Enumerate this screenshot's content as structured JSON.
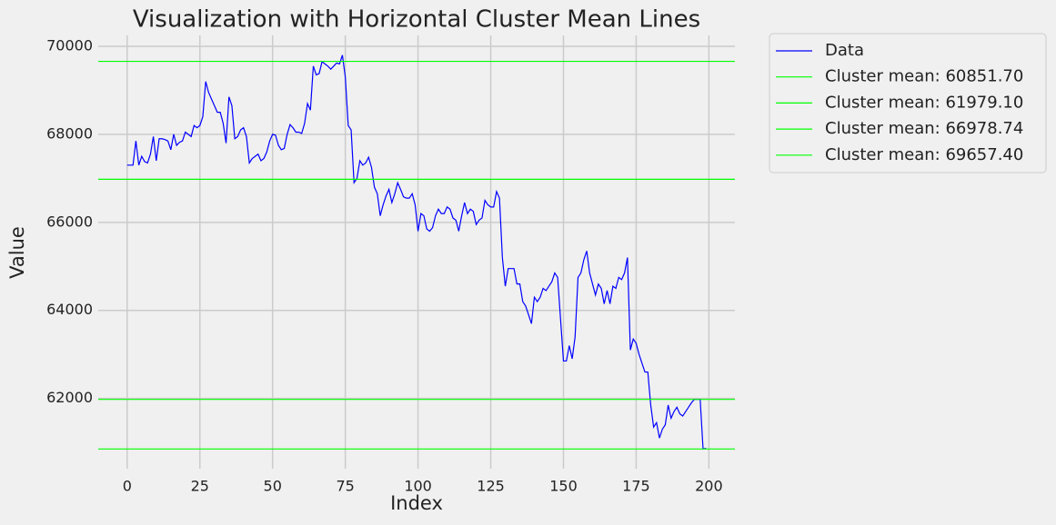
{
  "chart_data": {
    "type": "line",
    "title": "Visualization with Horizontal Cluster Mean Lines",
    "xlabel": "Index",
    "ylabel": "Value",
    "xlim": [
      -9.95,
      208.95
    ],
    "ylim": [
      60404,
      70247
    ],
    "xticks": [
      0,
      25,
      50,
      75,
      100,
      125,
      150,
      175,
      200
    ],
    "yticks": [
      62000,
      64000,
      66000,
      68000,
      70000
    ],
    "grid": true,
    "legend": "outside-upper-right",
    "x": [
      0,
      1,
      2,
      3,
      4,
      5,
      6,
      7,
      8,
      9,
      10,
      11,
      12,
      13,
      14,
      15,
      16,
      17,
      18,
      19,
      20,
      21,
      22,
      23,
      24,
      25,
      26,
      27,
      28,
      29,
      30,
      31,
      32,
      33,
      34,
      35,
      36,
      37,
      38,
      39,
      40,
      41,
      42,
      43,
      44,
      45,
      46,
      47,
      48,
      49,
      50,
      51,
      52,
      53,
      54,
      55,
      56,
      57,
      58,
      59,
      60,
      61,
      62,
      63,
      64,
      65,
      66,
      67,
      68,
      69,
      70,
      71,
      72,
      73,
      74,
      75,
      76,
      77,
      78,
      79,
      80,
      81,
      82,
      83,
      84,
      85,
      86,
      87,
      88,
      89,
      90,
      91,
      92,
      93,
      94,
      95,
      96,
      97,
      98,
      99,
      100,
      101,
      102,
      103,
      104,
      105,
      106,
      107,
      108,
      109,
      110,
      111,
      112,
      113,
      114,
      115,
      116,
      117,
      118,
      119,
      120,
      121,
      122,
      123,
      124,
      125,
      126,
      127,
      128,
      129,
      130,
      131,
      132,
      133,
      134,
      135,
      136,
      137,
      138,
      139,
      140,
      141,
      142,
      143,
      144,
      145,
      146,
      147,
      148,
      149,
      150,
      151,
      152,
      153,
      154,
      155,
      156,
      157,
      158,
      159,
      160,
      161,
      162,
      163,
      164,
      165,
      166,
      167,
      168,
      169,
      170,
      171,
      172,
      173,
      174,
      175,
      176,
      177,
      178,
      179,
      180,
      181,
      182,
      183,
      184,
      185,
      186,
      187,
      188,
      189,
      190,
      191,
      192,
      193,
      194,
      195,
      196,
      197,
      198,
      199
    ],
    "series": [
      {
        "name": "Data",
        "color": "#0000ff",
        "values": [
          67300,
          67300,
          67300,
          67850,
          67300,
          67500,
          67380,
          67350,
          67550,
          67950,
          67400,
          67900,
          67900,
          67880,
          67850,
          67650,
          68000,
          67750,
          67820,
          67850,
          68050,
          68000,
          67950,
          68200,
          68150,
          68200,
          68400,
          69200,
          68950,
          68800,
          68650,
          68500,
          68500,
          68250,
          67800,
          68850,
          68650,
          67900,
          67950,
          68100,
          68150,
          67950,
          67350,
          67450,
          67500,
          67550,
          67400,
          67450,
          67600,
          67850,
          68000,
          67980,
          67750,
          67650,
          67680,
          68000,
          68220,
          68150,
          68050,
          68050,
          68020,
          68250,
          68700,
          68550,
          69550,
          69350,
          69380,
          69650,
          69600,
          69550,
          69480,
          69550,
          69620,
          69600,
          69800,
          69300,
          68200,
          68100,
          66900,
          67000,
          67400,
          67300,
          67350,
          67480,
          67250,
          66800,
          66650,
          66150,
          66400,
          66600,
          66750,
          66450,
          66650,
          66900,
          66750,
          66580,
          66550,
          66550,
          66650,
          66400,
          65800,
          66200,
          66150,
          65850,
          65800,
          65880,
          66150,
          66300,
          66200,
          66200,
          66350,
          66300,
          66100,
          66050,
          65800,
          66150,
          66450,
          66200,
          66300,
          66250,
          65950,
          66050,
          66100,
          66500,
          66400,
          66350,
          66350,
          66700,
          66550,
          65200,
          64550,
          64950,
          64950,
          64950,
          64600,
          64600,
          64200,
          64100,
          63900,
          63700,
          64300,
          64200,
          64300,
          64500,
          64450,
          64550,
          64650,
          64850,
          64750,
          63800,
          62850,
          62850,
          63200,
          62900,
          63400,
          64750,
          64850,
          65150,
          65350,
          64850,
          64600,
          64350,
          64600,
          64500,
          64150,
          64450,
          64150,
          64550,
          64500,
          64750,
          64700,
          64850,
          65200,
          63100,
          63350,
          63250,
          63000,
          62800,
          62600,
          62600,
          61850,
          61350,
          61450,
          61100,
          61300,
          61400,
          61850,
          61550,
          61700,
          61800,
          61650,
          61600,
          61700,
          61800,
          61900,
          61980,
          61980,
          61980,
          60850,
          60870
        ]
      }
    ],
    "hlines": [
      {
        "name": "Cluster mean: 60851.70",
        "value": 60851.7,
        "color": "#00ff00"
      },
      {
        "name": "Cluster mean: 61979.10",
        "value": 61979.1,
        "color": "#00ff00"
      },
      {
        "name": "Cluster mean: 66978.74",
        "value": 66978.74,
        "color": "#00ff00"
      },
      {
        "name": "Cluster mean: 69657.40",
        "value": 69657.4,
        "color": "#00ff00"
      }
    ]
  }
}
